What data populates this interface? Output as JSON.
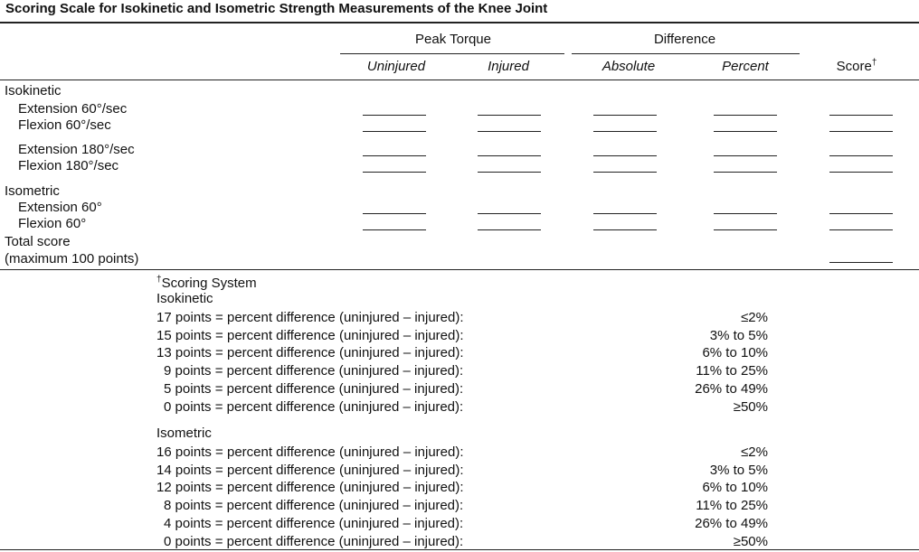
{
  "title": "Scoring Scale for Isokinetic and Isometric Strength Measurements of the Knee Joint",
  "table": {
    "header_groups": [
      "Peak Torque",
      "Difference"
    ],
    "columns": [
      "Uninjured",
      "Injured",
      "Absolute",
      "Percent",
      "Score"
    ],
    "score_mark": "†",
    "groups": [
      {
        "name": "Isokinetic",
        "rows": [
          "Extension 60°/sec",
          "Flexion 60°/sec",
          "Extension 180°/sec",
          "Flexion 180°/sec"
        ]
      },
      {
        "name": "Isometric",
        "rows": [
          "Extension 60°",
          "Flexion 60°"
        ]
      }
    ],
    "total": {
      "label": "Total score",
      "note": "(maximum 100 points)"
    }
  },
  "footnote": {
    "mark": "†",
    "title": "Scoring System",
    "sections": [
      {
        "name": "Isokinetic",
        "lines": [
          {
            "points": "17 points = percent difference (uninjured – injured):",
            "range": "≤2%"
          },
          {
            "points": "15 points = percent difference (uninjured – injured):",
            "range": "3% to 5%"
          },
          {
            "points": "13 points = percent difference (uninjured – injured):",
            "range": "6% to 10%"
          },
          {
            "points": "9 points = percent difference (uninjured – injured):",
            "range": "11% to 25%"
          },
          {
            "points": "5 points = percent difference (uninjured – injured):",
            "range": "26% to 49%"
          },
          {
            "points": "0 points = percent difference (uninjured – injured):",
            "range": "≥50%"
          }
        ]
      },
      {
        "name": "Isometric",
        "lines": [
          {
            "points": "16 points = percent difference (uninjured – injured):",
            "range": "≤2%"
          },
          {
            "points": "14 points = percent difference (uninjured – injured):",
            "range": "3% to 5%"
          },
          {
            "points": "12 points = percent difference (uninjured – injured):",
            "range": "6% to 10%"
          },
          {
            "points": "8 points = percent difference (uninjured – injured):",
            "range": "11% to 25%"
          },
          {
            "points": "4 points = percent difference (uninjured – injured):",
            "range": "26% to 49%"
          },
          {
            "points": "0 points = percent difference (uninjured – injured):",
            "range": "≥50%"
          }
        ]
      }
    ]
  }
}
